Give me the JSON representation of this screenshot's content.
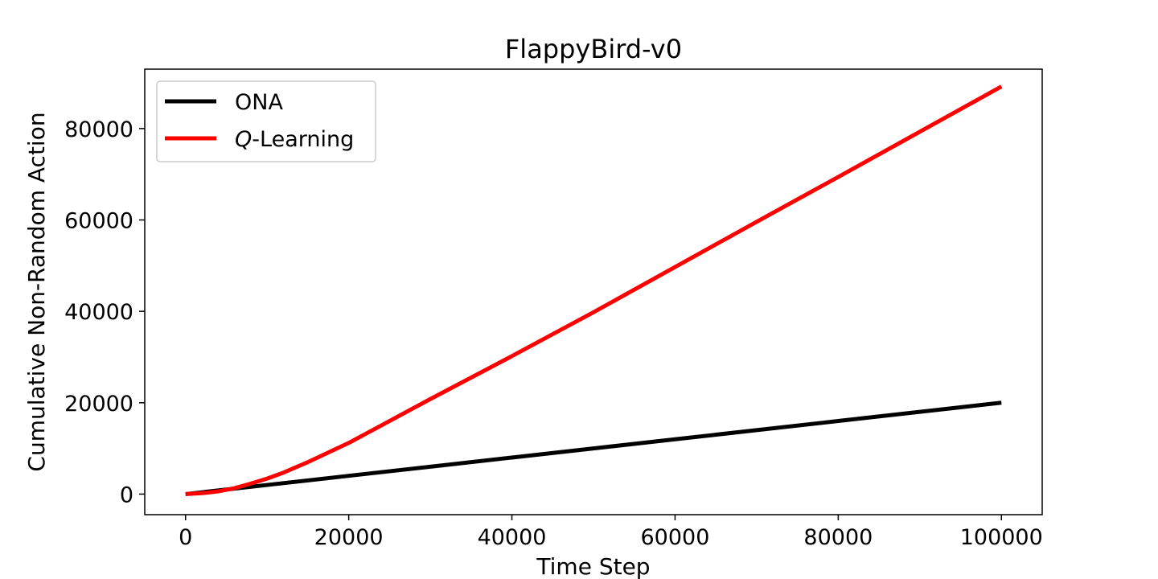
{
  "chart_data": {
    "type": "line",
    "title": "FlappyBird-v0",
    "xlabel": "Time Step",
    "ylabel": "Cumulative Non-Random Action",
    "xlim": [
      -5000,
      105000
    ],
    "ylim": [
      -4500,
      93000
    ],
    "xticks": [
      0,
      20000,
      40000,
      60000,
      80000,
      100000
    ],
    "yticks": [
      0,
      20000,
      40000,
      60000,
      80000
    ],
    "grid": false,
    "legend": "top-left",
    "series": [
      {
        "name": "ONA",
        "name_prefix": "",
        "name_suffix": "",
        "color": "#000000",
        "x": [
          0,
          5000,
          10000,
          20000,
          30000,
          40000,
          50000,
          60000,
          70000,
          80000,
          90000,
          100000
        ],
        "y": [
          0,
          1000,
          2000,
          4000,
          6000,
          8000,
          10000,
          12000,
          14000,
          16000,
          18000,
          20000
        ]
      },
      {
        "name": "Q-Learning",
        "name_prefix": "Q",
        "name_suffix": "-Learning",
        "color": "#ff0000",
        "x": [
          0,
          2000,
          4000,
          6000,
          8000,
          10000,
          12000,
          15000,
          20000,
          25000,
          30000,
          40000,
          50000,
          60000,
          70000,
          80000,
          90000,
          100000
        ],
        "y": [
          0,
          200,
          600,
          1300,
          2300,
          3400,
          4700,
          7000,
          11200,
          16000,
          20800,
          30200,
          39800,
          49700,
          59600,
          69400,
          79300,
          89200
        ]
      }
    ]
  }
}
